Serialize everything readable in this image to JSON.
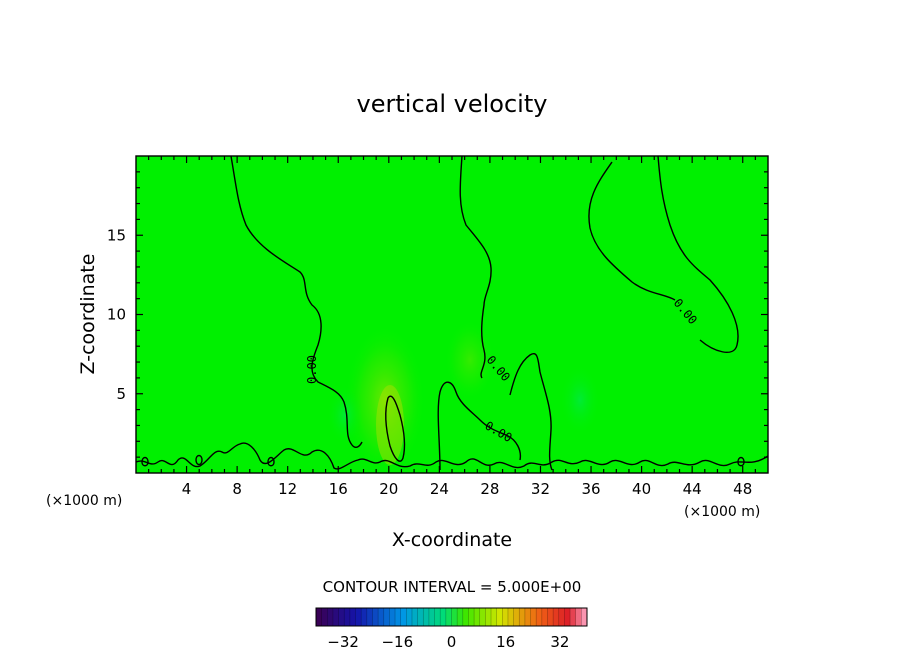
{
  "chart_data": {
    "type": "heatmap",
    "title": "vertical velocity",
    "xlabel": "X-coordinate",
    "ylabel": "Z-coordinate",
    "x_unit": "(×1000 m)",
    "y_unit": "(×1000 m)",
    "xlim": [
      0,
      50
    ],
    "ylim": [
      0,
      20
    ],
    "x_ticks": [
      4,
      8,
      12,
      16,
      20,
      24,
      28,
      32,
      36,
      40,
      44,
      48
    ],
    "y_ticks": [
      5,
      10,
      15
    ],
    "contour_interval_text": "CONTOUR INTERVAL = 5.000E+00",
    "contour_level_label": "0.00",
    "colorbar": {
      "range": [
        -40,
        40
      ],
      "tick_labels": [
        "-32",
        "-16",
        "0",
        "16",
        "32"
      ],
      "tick_values": [
        -32,
        -16,
        0,
        16,
        32
      ]
    },
    "background_color": "#00f000",
    "field_summary": "near-zero vertical velocity field with weak updraft near x=20, z=1-5"
  }
}
